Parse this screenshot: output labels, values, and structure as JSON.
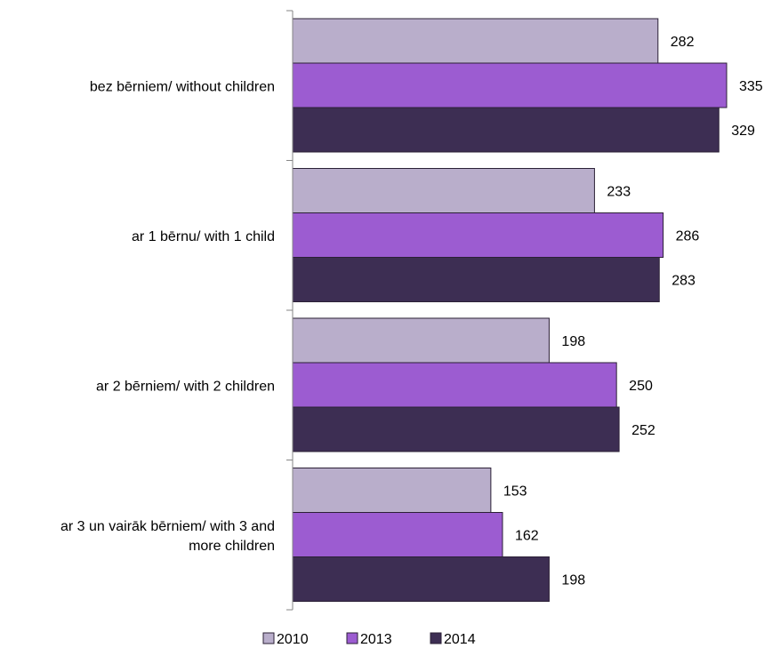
{
  "chart_data": {
    "type": "bar",
    "orientation": "horizontal",
    "categories": [
      [
        "bez bērniem/ without children"
      ],
      [
        "ar 1 bērnu/ with 1 child"
      ],
      [
        "ar 2 bērniem/ with 2 children"
      ],
      [
        "ar 3 un vairāk bērniem/ with 3 and",
        "more children"
      ]
    ],
    "series": [
      {
        "name": "2010",
        "values": [
          282,
          233,
          198,
          153
        ],
        "color": "#b9aecb"
      },
      {
        "name": "2013",
        "values": [
          335,
          286,
          250,
          162
        ],
        "color": "#9c5cd1"
      },
      {
        "name": "2014",
        "values": [
          329,
          283,
          252,
          198
        ],
        "color": "#3d2e53"
      }
    ],
    "xlim": [
      0,
      350
    ],
    "grid": false,
    "legend": "bottom",
    "data_labels": true
  }
}
